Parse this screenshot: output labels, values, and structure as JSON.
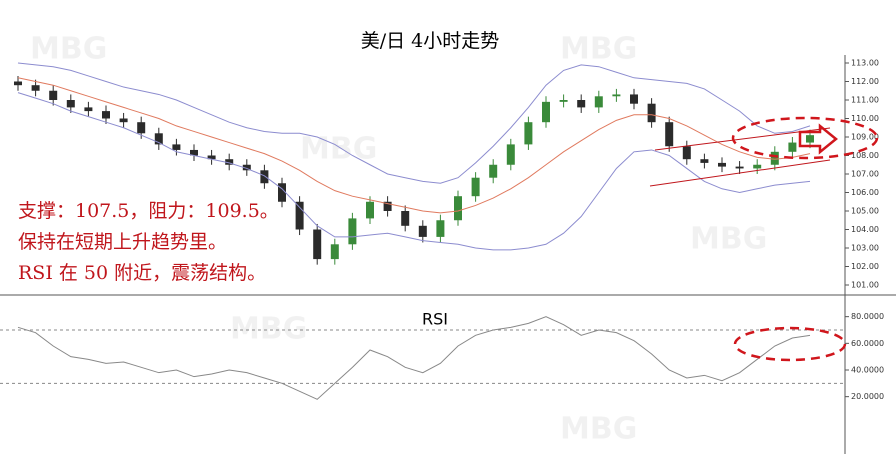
{
  "chart_data": [
    {
      "type": "candlestick",
      "title": "美/日 4小时走势",
      "annotations": [
        "支撑：107.5，阻力：109.5。",
        "保持在短期上升趋势里。",
        "RSI 在 50 附近，震荡结构。"
      ],
      "watermark": "MBG",
      "open": [
        112.0,
        111.8,
        111.5,
        111.0,
        110.6,
        110.4,
        110.0,
        109.8,
        109.2,
        108.6,
        108.3,
        108.0,
        107.8,
        107.5,
        107.2,
        106.5,
        105.5,
        104.0,
        102.4,
        103.2,
        104.6,
        105.5,
        105.0,
        104.2,
        103.6,
        104.5,
        105.8,
        106.8,
        107.5,
        108.6,
        109.8,
        110.9,
        111.0,
        110.6,
        111.2,
        111.3,
        110.8,
        109.8,
        108.5,
        107.8,
        107.6,
        107.4,
        107.3,
        107.5,
        108.2,
        108.7
      ],
      "high": [
        112.3,
        112.1,
        111.8,
        111.3,
        110.9,
        110.7,
        110.3,
        110.1,
        109.5,
        108.9,
        108.6,
        108.3,
        108.1,
        107.8,
        107.5,
        106.8,
        105.8,
        104.3,
        103.5,
        104.9,
        105.8,
        105.8,
        105.3,
        104.5,
        104.8,
        106.1,
        107.1,
        107.8,
        108.9,
        110.1,
        111.2,
        111.3,
        111.3,
        111.5,
        111.6,
        111.6,
        111.1,
        110.1,
        108.8,
        108.1,
        107.9,
        107.7,
        107.8,
        108.5,
        109.0,
        109.4
      ],
      "low": [
        111.5,
        111.2,
        110.7,
        110.3,
        110.1,
        109.7,
        109.5,
        108.9,
        108.3,
        108.0,
        107.7,
        107.5,
        107.2,
        106.9,
        106.2,
        105.2,
        103.7,
        102.1,
        102.1,
        102.9,
        104.3,
        104.7,
        103.9,
        103.3,
        103.3,
        104.2,
        105.5,
        106.5,
        107.2,
        108.3,
        109.5,
        110.6,
        110.3,
        110.3,
        110.9,
        110.5,
        109.5,
        108.2,
        107.5,
        107.3,
        107.1,
        107.0,
        107.0,
        107.2,
        107.9,
        108.4
      ],
      "close": [
        111.8,
        111.5,
        111.0,
        110.6,
        110.4,
        110.0,
        109.8,
        109.2,
        108.6,
        108.3,
        108.0,
        107.8,
        107.5,
        107.2,
        106.5,
        105.5,
        104.0,
        102.4,
        103.2,
        104.6,
        105.5,
        105.0,
        104.2,
        103.6,
        104.5,
        105.8,
        106.8,
        107.5,
        108.6,
        109.8,
        110.9,
        111.0,
        110.6,
        111.2,
        111.3,
        110.8,
        109.8,
        108.5,
        107.8,
        107.6,
        107.4,
        107.3,
        107.5,
        108.2,
        108.7,
        109.1
      ],
      "up_color": "#3a8a3a",
      "down_color": "#2b2b2b",
      "bands": [
        {
          "color": "#8c8ccf",
          "values": [
            113.0,
            112.9,
            112.8,
            112.6,
            112.3,
            112.0,
            111.7,
            111.5,
            111.3,
            111.0,
            110.6,
            110.2,
            109.8,
            109.5,
            109.3,
            109.2,
            109.2,
            109.0,
            108.6,
            108.0,
            107.5,
            107.0,
            106.8,
            106.6,
            106.5,
            106.8,
            107.6,
            108.5,
            109.5,
            110.6,
            111.8,
            112.6,
            112.9,
            112.8,
            112.5,
            112.2,
            112.1,
            112.0,
            111.9,
            111.6,
            111.0,
            110.4,
            109.6,
            109.2,
            109.3,
            109.6
          ]
        },
        {
          "color": "#e07a5f",
          "values": [
            112.2,
            112.0,
            111.8,
            111.5,
            111.2,
            110.9,
            110.6,
            110.3,
            110.0,
            109.6,
            109.3,
            109.0,
            108.7,
            108.4,
            108.1,
            107.7,
            107.2,
            106.6,
            106.1,
            105.8,
            105.6,
            105.4,
            105.2,
            105.0,
            104.9,
            105.0,
            105.3,
            105.7,
            106.2,
            106.8,
            107.5,
            108.2,
            108.8,
            109.4,
            109.9,
            110.2,
            110.2,
            110.0,
            109.6,
            109.1,
            108.6,
            108.2,
            107.9,
            107.8,
            107.9,
            108.1
          ]
        },
        {
          "color": "#8c8ccf",
          "values": [
            111.4,
            111.1,
            110.8,
            110.4,
            110.1,
            109.8,
            109.5,
            109.1,
            108.7,
            108.2,
            108.0,
            107.8,
            107.6,
            107.3,
            106.9,
            106.2,
            105.2,
            104.2,
            103.6,
            103.6,
            103.7,
            103.8,
            103.6,
            103.4,
            103.3,
            103.2,
            103.0,
            102.9,
            102.9,
            103.0,
            103.2,
            103.8,
            104.7,
            106.0,
            107.3,
            108.2,
            108.3,
            108.0,
            107.3,
            106.6,
            106.2,
            106.0,
            106.2,
            106.4,
            106.5,
            106.6
          ]
        }
      ],
      "ylim": [
        101,
        113
      ],
      "yticks": [
        {
          "value": 101,
          "label": "101.00"
        },
        {
          "value": 102,
          "label": "102.00"
        },
        {
          "value": 103,
          "label": "103.00"
        },
        {
          "value": 104,
          "label": "104.00"
        },
        {
          "value": 105,
          "label": "105.00"
        },
        {
          "value": 106,
          "label": "106.00"
        },
        {
          "value": 107,
          "label": "107.00"
        },
        {
          "value": 108,
          "label": "108.00"
        },
        {
          "value": 109,
          "label": "109.00"
        },
        {
          "value": 110,
          "label": "110.00"
        },
        {
          "value": 111,
          "label": "111.00"
        },
        {
          "value": 112,
          "label": "112.00"
        },
        {
          "value": 113,
          "label": "113.00"
        }
      ]
    },
    {
      "type": "line",
      "title": "RSI",
      "color": "#888888",
      "values": [
        72,
        68,
        58,
        50,
        48,
        45,
        46,
        42,
        38,
        40,
        35,
        37,
        40,
        38,
        34,
        30,
        24,
        18,
        30,
        42,
        55,
        50,
        42,
        38,
        45,
        58,
        66,
        70,
        72,
        75,
        80,
        74,
        66,
        70,
        68,
        62,
        52,
        40,
        34,
        36,
        32,
        38,
        48,
        58,
        64,
        66
      ],
      "levels": [
        70,
        30
      ],
      "ylim": [
        10,
        85
      ],
      "yticks": [
        {
          "value": 20,
          "label": "20.0000"
        },
        {
          "value": 40,
          "label": "40.0000"
        },
        {
          "value": 60,
          "label": "60.0000"
        },
        {
          "value": 80,
          "label": "80.0000"
        }
      ]
    }
  ]
}
